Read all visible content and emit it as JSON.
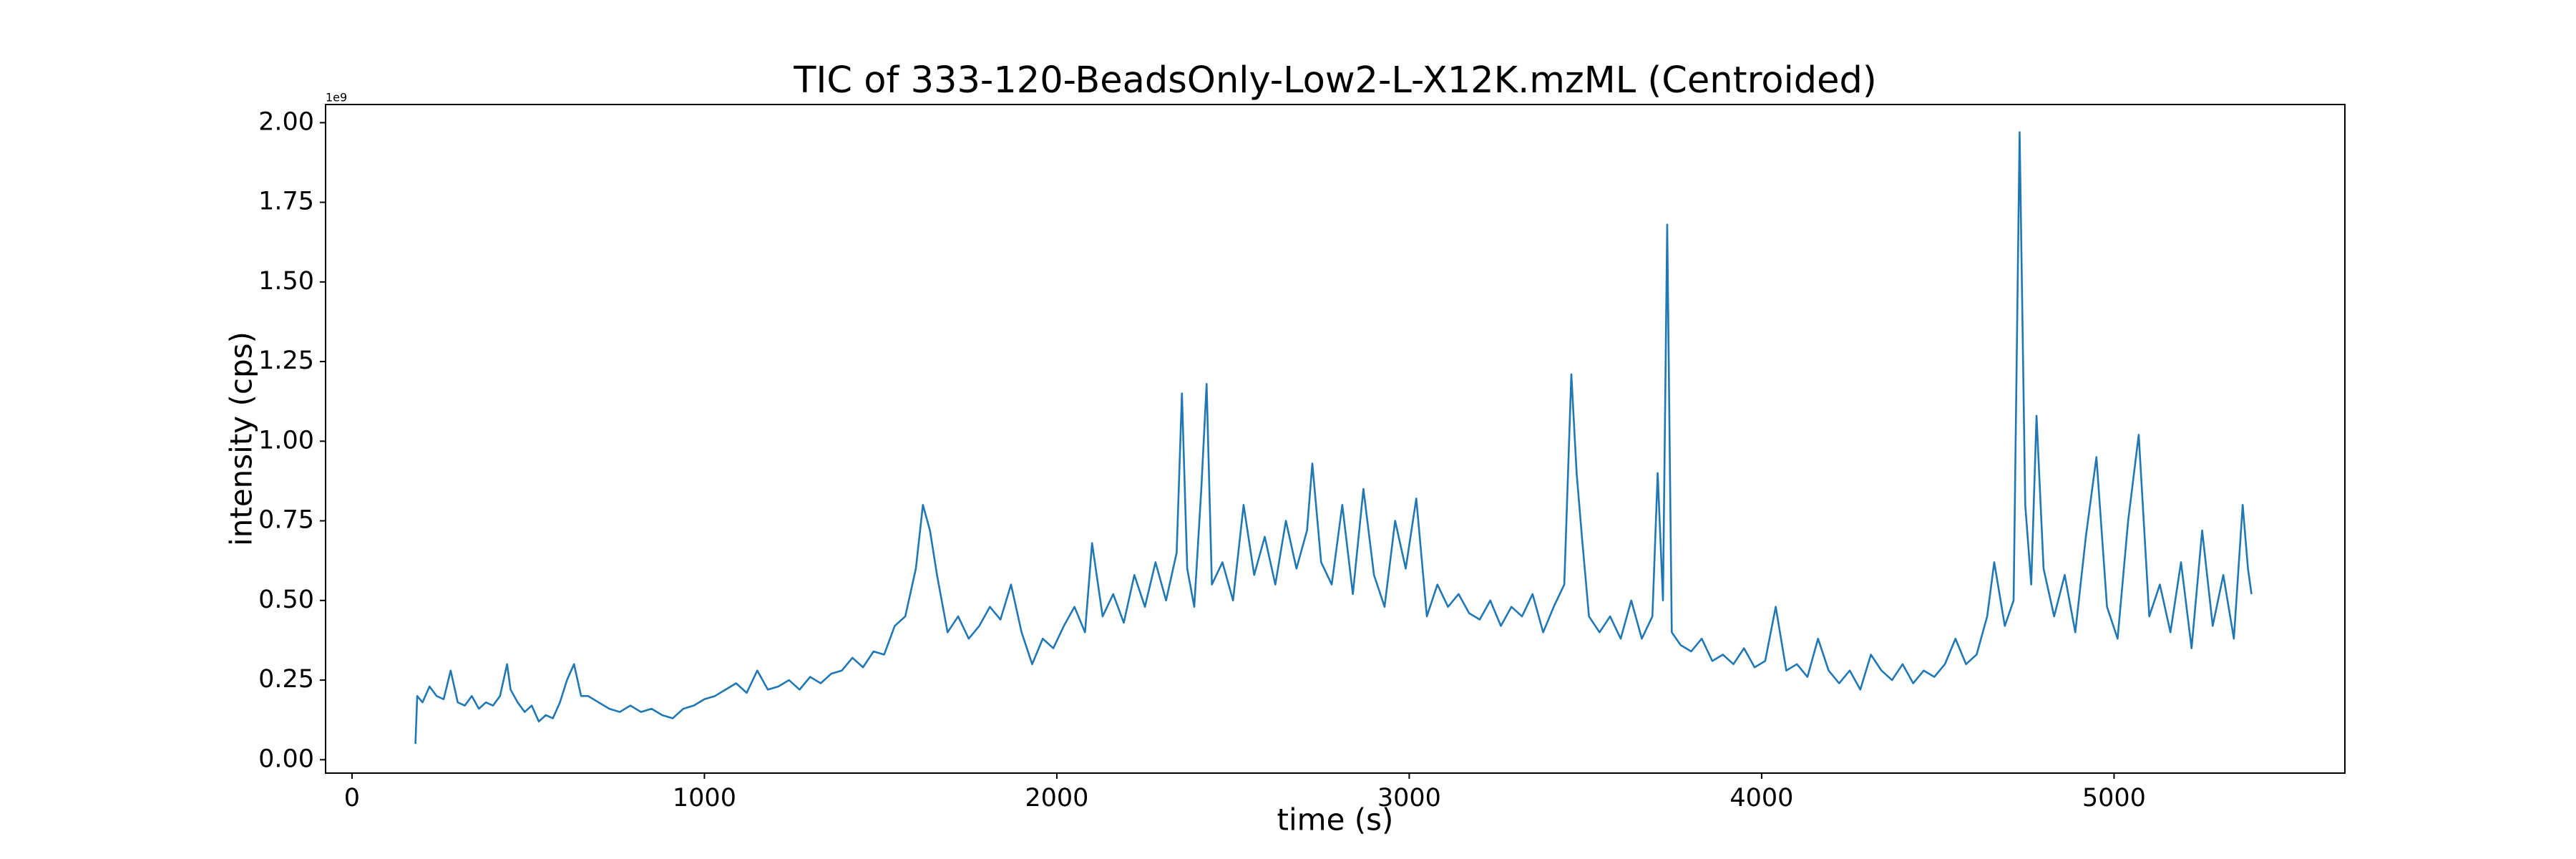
{
  "chart_data": {
    "type": "line",
    "title": "TIC of 333-120-BeadsOnly-Low2-L-X12K.mzML (Centroided)",
    "x_label": "time (s)",
    "y_label": "intensity (cps)",
    "y_offset_label": "1e9",
    "xlim": [
      -75,
      5655
    ],
    "ylim": [
      -0.042,
      2.057
    ],
    "xticks": [
      0,
      1000,
      2000,
      3000,
      4000,
      5000
    ],
    "yticks": [
      {
        "value": 0,
        "label": "0.00"
      },
      {
        "value": 0.25,
        "label": "0.25"
      },
      {
        "value": 0.5,
        "label": "0.50"
      },
      {
        "value": 0.75,
        "label": "0.75"
      },
      {
        "value": 1,
        "label": "1.00"
      },
      {
        "value": 1.25,
        "label": "1.25"
      },
      {
        "value": 1.5,
        "label": "1.50"
      },
      {
        "value": 1.75,
        "label": "1.75"
      },
      {
        "value": 2,
        "label": "2.00"
      }
    ],
    "grid": false,
    "series": [
      {
        "color": "#1f77b4",
        "x": [
          180,
          185,
          200,
          220,
          240,
          260,
          280,
          300,
          320,
          340,
          360,
          380,
          400,
          420,
          440,
          450,
          470,
          490,
          510,
          530,
          550,
          570,
          590,
          610,
          630,
          650,
          670,
          700,
          730,
          760,
          790,
          820,
          850,
          880,
          910,
          940,
          970,
          1000,
          1030,
          1060,
          1090,
          1120,
          1150,
          1180,
          1210,
          1240,
          1270,
          1300,
          1330,
          1360,
          1390,
          1420,
          1450,
          1480,
          1510,
          1540,
          1570,
          1600,
          1620,
          1640,
          1660,
          1690,
          1720,
          1750,
          1780,
          1810,
          1840,
          1870,
          1900,
          1930,
          1960,
          1990,
          2020,
          2050,
          2080,
          2100,
          2130,
          2160,
          2190,
          2220,
          2250,
          2280,
          2310,
          2340,
          2355,
          2370,
          2390,
          2410,
          2425,
          2440,
          2470,
          2500,
          2530,
          2560,
          2590,
          2620,
          2650,
          2680,
          2710,
          2725,
          2750,
          2780,
          2810,
          2840,
          2870,
          2900,
          2930,
          2960,
          2990,
          3020,
          3050,
          3080,
          3110,
          3140,
          3170,
          3200,
          3230,
          3260,
          3290,
          3320,
          3350,
          3380,
          3410,
          3440,
          3460,
          3475,
          3490,
          3510,
          3540,
          3570,
          3600,
          3630,
          3660,
          3690,
          3705,
          3720,
          3732,
          3745,
          3770,
          3800,
          3830,
          3860,
          3890,
          3920,
          3950,
          3980,
          4010,
          4040,
          4070,
          4100,
          4130,
          4160,
          4190,
          4220,
          4250,
          4280,
          4310,
          4340,
          4370,
          4400,
          4430,
          4460,
          4490,
          4520,
          4550,
          4580,
          4610,
          4640,
          4660,
          4690,
          4715,
          4732,
          4748,
          4765,
          4780,
          4800,
          4830,
          4860,
          4890,
          4920,
          4950,
          4980,
          5010,
          5040,
          5070,
          5100,
          5130,
          5160,
          5190,
          5220,
          5250,
          5280,
          5310,
          5340,
          5365,
          5380,
          5390
        ],
        "values": [
          0.05,
          0.2,
          0.18,
          0.23,
          0.2,
          0.19,
          0.28,
          0.18,
          0.17,
          0.2,
          0.16,
          0.18,
          0.17,
          0.2,
          0.3,
          0.22,
          0.18,
          0.15,
          0.17,
          0.12,
          0.14,
          0.13,
          0.18,
          0.25,
          0.3,
          0.2,
          0.2,
          0.18,
          0.16,
          0.15,
          0.17,
          0.15,
          0.16,
          0.14,
          0.13,
          0.16,
          0.17,
          0.19,
          0.2,
          0.22,
          0.24,
          0.21,
          0.28,
          0.22,
          0.23,
          0.25,
          0.22,
          0.26,
          0.24,
          0.27,
          0.28,
          0.32,
          0.29,
          0.34,
          0.33,
          0.42,
          0.45,
          0.6,
          0.8,
          0.72,
          0.58,
          0.4,
          0.45,
          0.38,
          0.42,
          0.48,
          0.44,
          0.55,
          0.4,
          0.3,
          0.38,
          0.35,
          0.42,
          0.48,
          0.4,
          0.68,
          0.45,
          0.52,
          0.43,
          0.58,
          0.48,
          0.62,
          0.5,
          0.65,
          1.15,
          0.6,
          0.48,
          0.85,
          1.18,
          0.55,
          0.62,
          0.5,
          0.8,
          0.58,
          0.7,
          0.55,
          0.75,
          0.6,
          0.72,
          0.93,
          0.62,
          0.55,
          0.8,
          0.52,
          0.85,
          0.58,
          0.48,
          0.75,
          0.6,
          0.82,
          0.45,
          0.55,
          0.48,
          0.52,
          0.46,
          0.44,
          0.5,
          0.42,
          0.48,
          0.45,
          0.52,
          0.4,
          0.48,
          0.55,
          1.21,
          0.9,
          0.7,
          0.45,
          0.4,
          0.45,
          0.38,
          0.5,
          0.38,
          0.45,
          0.9,
          0.5,
          1.68,
          0.4,
          0.36,
          0.34,
          0.38,
          0.31,
          0.33,
          0.3,
          0.35,
          0.29,
          0.31,
          0.48,
          0.28,
          0.3,
          0.26,
          0.38,
          0.28,
          0.24,
          0.28,
          0.22,
          0.33,
          0.28,
          0.25,
          0.3,
          0.24,
          0.28,
          0.26,
          0.3,
          0.38,
          0.3,
          0.33,
          0.45,
          0.62,
          0.42,
          0.5,
          1.97,
          0.8,
          0.55,
          1.08,
          0.6,
          0.45,
          0.58,
          0.4,
          0.7,
          0.95,
          0.48,
          0.38,
          0.75,
          1.02,
          0.45,
          0.55,
          0.4,
          0.62,
          0.35,
          0.72,
          0.42,
          0.58,
          0.38,
          0.8,
          0.6,
          0.52
        ]
      }
    ]
  }
}
